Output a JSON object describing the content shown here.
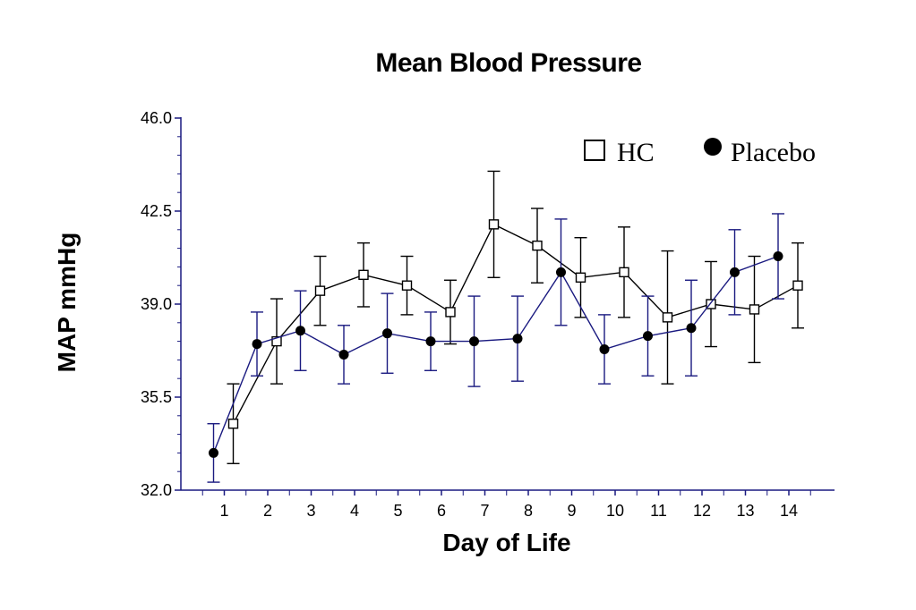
{
  "chart_data": {
    "type": "line",
    "title": "Mean Blood Pressure",
    "xlabel": "Day of Life",
    "ylabel": "MAP mmHg",
    "ylim": [
      32.0,
      46.0
    ],
    "yticks": [
      "32.0",
      "35.5",
      "39.0",
      "42.5",
      "46.0"
    ],
    "categories": [
      "1",
      "2",
      "3",
      "4",
      "5",
      "6",
      "7",
      "8",
      "9",
      "10",
      "11",
      "12",
      "13",
      "14"
    ],
    "legend_position": "top-right",
    "grid": false,
    "series": [
      {
        "name": "HC",
        "marker": "open-square",
        "color": "#000000",
        "x": [
          1,
          2,
          3,
          4,
          5,
          6,
          7,
          8,
          9,
          10,
          11,
          12,
          13,
          14
        ],
        "values": [
          34.5,
          37.6,
          39.5,
          40.1,
          39.7,
          38.7,
          42.0,
          41.2,
          40.0,
          40.2,
          38.5,
          39.0,
          38.8,
          39.7
        ],
        "error": [
          1.5,
          1.6,
          1.3,
          1.2,
          1.1,
          1.2,
          2.0,
          1.4,
          1.5,
          1.7,
          2.5,
          1.6,
          2.0,
          1.6
        ]
      },
      {
        "name": "Placebo",
        "marker": "filled-circle",
        "color": "#1a1a80",
        "x": [
          1,
          2,
          3,
          4,
          5,
          6,
          7,
          8,
          9,
          10,
          11,
          12,
          13,
          14
        ],
        "values": [
          33.4,
          37.5,
          38.0,
          37.1,
          37.9,
          37.6,
          37.6,
          37.7,
          40.2,
          37.3,
          37.8,
          38.1,
          40.2,
          40.8
        ],
        "error": [
          1.1,
          1.2,
          1.5,
          1.1,
          1.5,
          1.1,
          1.7,
          1.6,
          2.0,
          1.3,
          1.5,
          1.8,
          1.6,
          1.6
        ]
      }
    ]
  }
}
